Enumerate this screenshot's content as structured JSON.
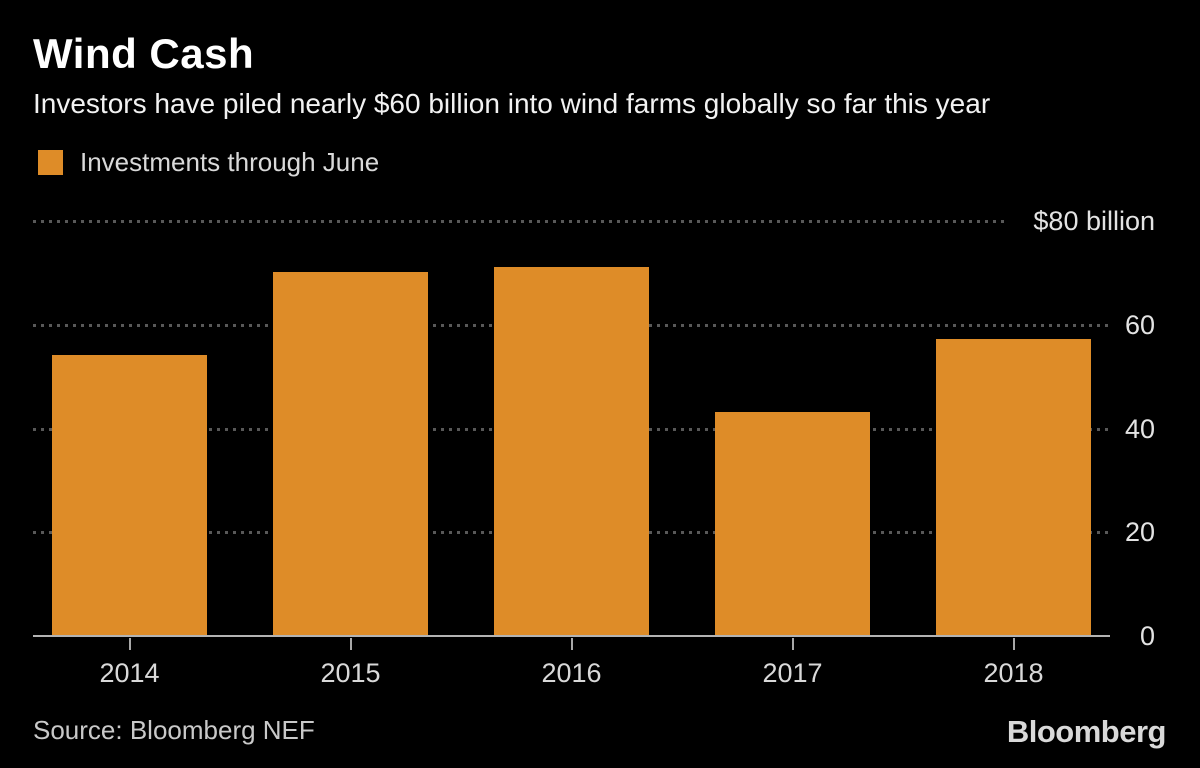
{
  "chart_data": {
    "type": "bar",
    "title": "Wind Cash",
    "subtitle": "Investors have piled nearly $60 billion into wind farms globally so far this year",
    "legend": [
      {
        "label": "Investments through June",
        "color": "#de8c28"
      }
    ],
    "legend_position": "top-left",
    "categories": [
      "2014",
      "2015",
      "2016",
      "2017",
      "2018"
    ],
    "values": [
      54,
      70,
      71,
      43,
      57
    ],
    "unit": "$ billion",
    "ylim": [
      0,
      80
    ],
    "yticks": [
      {
        "value": 80,
        "label": "$80 billion"
      },
      {
        "value": 60,
        "label": "60"
      },
      {
        "value": 40,
        "label": "40"
      },
      {
        "value": 20,
        "label": "20"
      },
      {
        "value": 0,
        "label": "0"
      }
    ],
    "grid": "dotted-horizontal",
    "bar_color": "#de8c28",
    "background": "#000000",
    "gridline_color": "#585858",
    "axis_color": "#b3b3b3"
  },
  "footer": {
    "source": "Source: Bloomberg NEF",
    "brand": "Bloomberg"
  }
}
